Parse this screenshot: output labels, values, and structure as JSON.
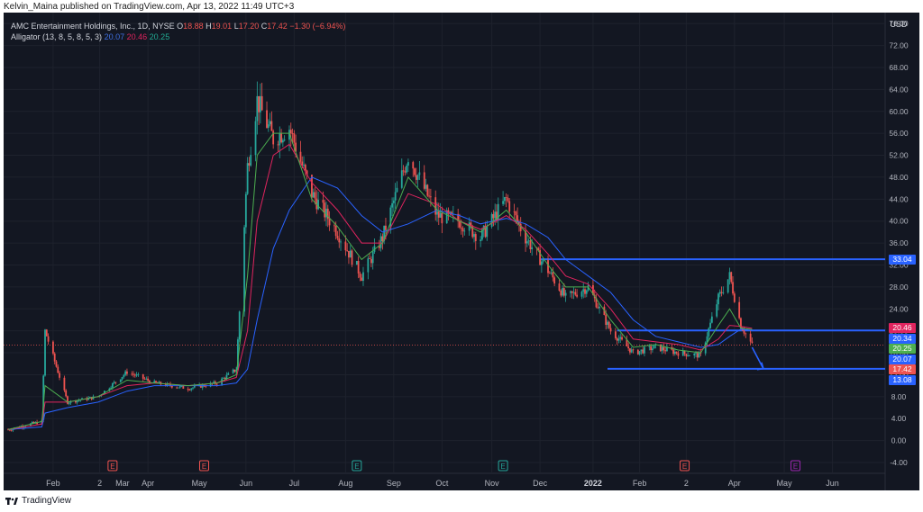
{
  "publisher": "Kelvin_Maina published on TradingView.com, Apr 13, 2022 11:49 UTC+3",
  "footer_brand": "TradingView",
  "legend": {
    "symbol": "AMC Entertainment Holdings, Inc., 1D, NYSE",
    "o_label": "O",
    "o": "18.88",
    "h_label": "H",
    "h": "19.01",
    "l_label": "L",
    "l": "17.20",
    "c_label": "C",
    "c": "17.42",
    "change": "−1.30 (−6.94%)",
    "indicator": "Alligator (13, 8, 5, 8, 5, 3)",
    "jaw": "20.07",
    "teeth": "20.46",
    "lips": "20.25"
  },
  "colors": {
    "background": "#131722",
    "up": "#26a69a",
    "down": "#ef5350",
    "jaw": "#2962ff",
    "teeth": "#e0245e",
    "lips": "#4caf50",
    "hline": "#2962ff"
  },
  "price_tags": [
    {
      "label": "33.04",
      "value": 33.04,
      "color": "#2962ff"
    },
    {
      "label": "20.46",
      "value": 20.46,
      "color": "#e0245e"
    },
    {
      "label": "20.34",
      "value": 20.34,
      "color": "#2962ff"
    },
    {
      "label": "20.25",
      "value": 20.25,
      "color": "#4caf50"
    },
    {
      "label": "20.07",
      "value": 20.07,
      "color": "#2962ff"
    },
    {
      "label": "17.42",
      "value": 17.42,
      "color": "#ef5350"
    },
    {
      "label": "13.08",
      "value": 13.08,
      "color": "#2962ff"
    }
  ],
  "chart_data": {
    "type": "line",
    "currency_label": "USD",
    "ylim": [
      -4,
      78
    ],
    "yticks": [
      "76.00",
      "72.00",
      "68.00",
      "64.00",
      "60.00",
      "56.00",
      "52.00",
      "48.00",
      "44.00",
      "40.00",
      "36.00",
      "32.00",
      "28.00",
      "24.00",
      "20.00",
      "16.00",
      "12.00",
      "8.00",
      "4.00",
      "0.00",
      "-4.00"
    ],
    "xticks": [
      "Feb",
      "2",
      "Mar",
      "Apr",
      "May",
      "Jun",
      "Jul",
      "Aug",
      "Sep",
      "Oct",
      "Nov",
      "Dec",
      "2022",
      "Feb",
      "2",
      "Apr",
      "May",
      "Jun"
    ],
    "bold_tick": "2022",
    "x": [
      "2021-01-04",
      "2021-01-25",
      "2021-01-27",
      "2021-02-10",
      "2021-03-01",
      "2021-03-19",
      "2021-04-05",
      "2021-04-26",
      "2021-05-14",
      "2021-05-26",
      "2021-06-02",
      "2021-06-08",
      "2021-06-18",
      "2021-06-28",
      "2021-07-12",
      "2021-07-28",
      "2021-08-12",
      "2021-08-25",
      "2021-09-10",
      "2021-09-28",
      "2021-10-12",
      "2021-10-25",
      "2021-11-10",
      "2021-11-22",
      "2021-12-06",
      "2021-12-17",
      "2021-12-31",
      "2022-01-14",
      "2022-01-28",
      "2022-02-11",
      "2022-02-25",
      "2022-03-11",
      "2022-03-22",
      "2022-03-29",
      "2022-04-05",
      "2022-04-12"
    ],
    "series": [
      {
        "name": "AMC",
        "values": [
          2.0,
          3.5,
          20.0,
          7.0,
          8.0,
          12.5,
          10.5,
          9.5,
          10.5,
          13.0,
          50.0,
          62.0,
          55.0,
          57.0,
          45.0,
          38.0,
          30.0,
          37.0,
          52.0,
          41.0,
          40.0,
          37.0,
          44.0,
          37.0,
          31.0,
          26.0,
          28.0,
          20.0,
          16.0,
          17.0,
          16.0,
          15.5,
          26.0,
          30.0,
          21.0,
          17.42
        ]
      },
      {
        "name": "Jaw",
        "values": [
          2.0,
          2.5,
          5.0,
          6.0,
          7.0,
          9.0,
          10.0,
          10.0,
          10.0,
          10.5,
          13.0,
          22.0,
          35.0,
          42.0,
          48.0,
          46.0,
          41.0,
          38.0,
          39.5,
          42.0,
          41.0,
          39.5,
          40.5,
          39.5,
          37.0,
          33.0,
          30.0,
          27.0,
          22.0,
          19.0,
          18.0,
          17.0,
          17.5,
          19.0,
          20.3,
          20.07
        ]
      },
      {
        "name": "Teeth",
        "values": [
          2.0,
          3.0,
          7.0,
          7.0,
          8.0,
          10.0,
          10.5,
          10.0,
          10.5,
          11.5,
          20.0,
          40.0,
          52.0,
          54.0,
          47.0,
          42.0,
          36.0,
          36.0,
          45.0,
          43.0,
          40.0,
          38.5,
          41.0,
          38.5,
          34.0,
          30.0,
          28.5,
          24.0,
          18.5,
          18.0,
          17.5,
          16.5,
          18.5,
          21.0,
          20.8,
          20.46
        ]
      },
      {
        "name": "Lips",
        "values": [
          2.0,
          3.5,
          10.0,
          7.0,
          8.0,
          11.0,
          10.5,
          10.0,
          10.5,
          12.0,
          30.0,
          52.0,
          56.0,
          56.0,
          44.0,
          39.0,
          33.0,
          36.0,
          48.0,
          42.0,
          40.0,
          38.0,
          42.0,
          38.0,
          32.0,
          28.0,
          28.0,
          22.0,
          17.0,
          17.5,
          16.5,
          16.0,
          21.0,
          24.0,
          20.5,
          20.25
        ]
      }
    ],
    "annotations": {
      "horizontal_lines": [
        {
          "price": 33.04,
          "from": "2021-12-01",
          "to": "right-edge"
        },
        {
          "price": 20.07,
          "from": "2022-01-18",
          "to": "right-edge"
        },
        {
          "price": 13.08,
          "from": "2022-01-12",
          "to": "right-edge"
        }
      ],
      "arrow": {
        "from_date": "2022-04-12",
        "from_price": 17.0,
        "to_date": "2022-04-19",
        "to_price": 13.1
      },
      "event_markers": [
        {
          "label": "E",
          "date": "2021-03-10",
          "color": "#ef5350"
        },
        {
          "label": "E",
          "date": "2021-05-06",
          "color": "#ef5350"
        },
        {
          "label": "E",
          "date": "2021-08-09",
          "color": "#26a69a"
        },
        {
          "label": "E",
          "date": "2021-11-08",
          "color": "#26a69a"
        },
        {
          "label": "E",
          "date": "2022-03-01",
          "color": "#ef5350"
        },
        {
          "label": "E",
          "date": "2022-05-09",
          "color": "#9c27b0"
        }
      ]
    },
    "grid": true
  }
}
